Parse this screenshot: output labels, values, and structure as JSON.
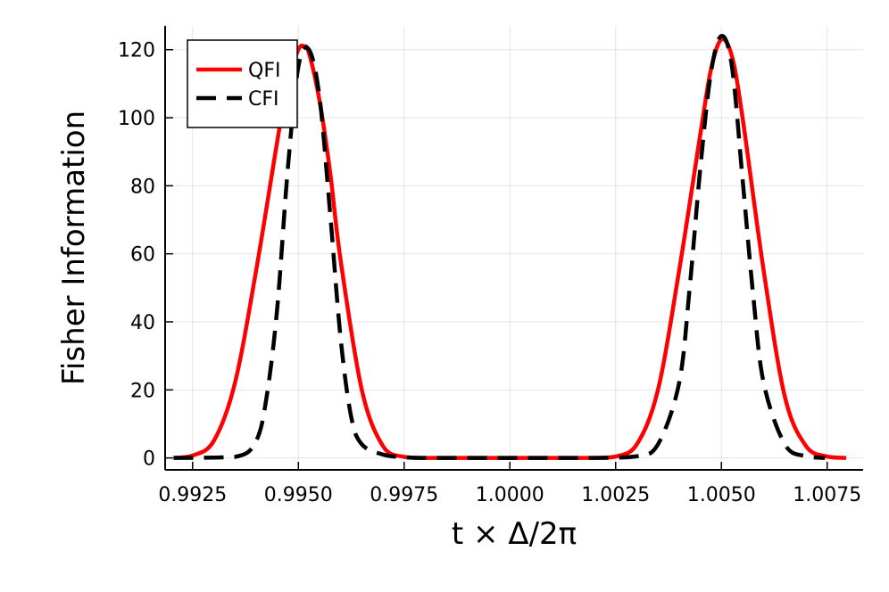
{
  "chart_data": {
    "type": "line",
    "xlabel": "t × Δ/2π",
    "ylabel": "Fisher Information",
    "xlim": [
      0.99185,
      1.00835
    ],
    "ylim": [
      -3.5,
      127
    ],
    "grid": true,
    "legend_position": "top-left",
    "xticks": [
      0.9925,
      0.995,
      0.9975,
      1.0,
      1.0025,
      1.005,
      1.0075
    ],
    "xtick_labels": [
      "0.9925",
      "0.9950",
      "0.9975",
      "1.0000",
      "1.0025",
      "1.0050",
      "1.0075"
    ],
    "yticks": [
      0,
      20,
      40,
      60,
      80,
      100,
      120
    ],
    "ytick_labels": [
      "0",
      "20",
      "40",
      "60",
      "80",
      "100",
      "120"
    ],
    "series": [
      {
        "name": "QFI",
        "color": "#ff0000",
        "style": "solid",
        "x": [
          0.99205,
          0.9925,
          0.993,
          0.9935,
          0.994,
          0.9945,
          0.99475,
          0.995,
          0.99513,
          0.99525,
          0.9955,
          0.99575,
          0.996,
          0.9965,
          0.997,
          0.9975,
          0.998,
          0.999,
          1.0,
          1.001,
          1.002,
          1.0025,
          1.003,
          1.0035,
          1.004,
          1.0045,
          1.00475,
          1.005,
          1.00525,
          1.0055,
          1.006,
          1.0065,
          1.007,
          1.0075,
          1.00795
        ],
        "y": [
          0,
          0.7,
          5,
          22,
          55,
          93,
          111,
          120,
          121,
          119,
          105,
          84,
          58,
          20,
          3.5,
          0.3,
          0,
          0,
          0,
          0,
          0,
          0.4,
          4,
          20,
          55,
          95,
          114,
          123,
          118,
          100,
          55,
          18,
          3.5,
          0.4,
          0
        ]
      },
      {
        "name": "CFI",
        "color": "#000000",
        "style": "dashed",
        "x": [
          0.99205,
          0.9935,
          0.994,
          0.99425,
          0.9945,
          0.99475,
          0.995,
          0.99525,
          0.9955,
          0.99575,
          0.996,
          0.99625,
          0.9965,
          0.997,
          0.9975,
          0.998,
          0.999,
          1.0,
          1.001,
          1.002,
          1.003,
          1.0035,
          1.004,
          1.00425,
          1.0045,
          1.00475,
          1.005,
          1.00525,
          1.0055,
          1.00575,
          1.006,
          1.0065,
          1.007,
          1.00745
        ],
        "y": [
          0,
          0.3,
          5,
          18,
          44,
          85,
          115,
          120,
          106,
          72,
          35,
          12,
          4,
          1,
          0.2,
          0,
          0,
          0,
          0,
          0,
          0.5,
          4,
          22,
          50,
          85,
          113,
          124,
          115,
          82,
          48,
          22,
          4,
          0.5,
          0
        ]
      }
    ]
  }
}
